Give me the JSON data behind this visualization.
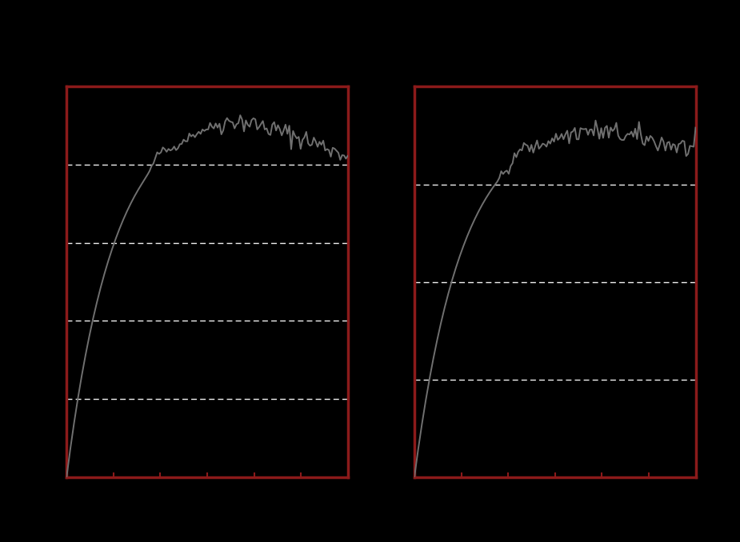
{
  "background_color": "#000000",
  "border_color": "#8B1A1A",
  "line_color": "#707070",
  "grid_color": "#ffffff",
  "tick_color": "#8B1A1A",
  "n_points": 150,
  "chart1": {
    "ylim": [
      0,
      25000
    ],
    "yticks": [
      0,
      5000,
      10000,
      15000,
      20000,
      25000
    ],
    "n_xticks": 5
  },
  "chart2": {
    "ylim": [
      0,
      0.008
    ],
    "yticks": [
      0,
      0.002,
      0.004,
      0.006,
      0.008
    ],
    "n_xticks": 5
  }
}
